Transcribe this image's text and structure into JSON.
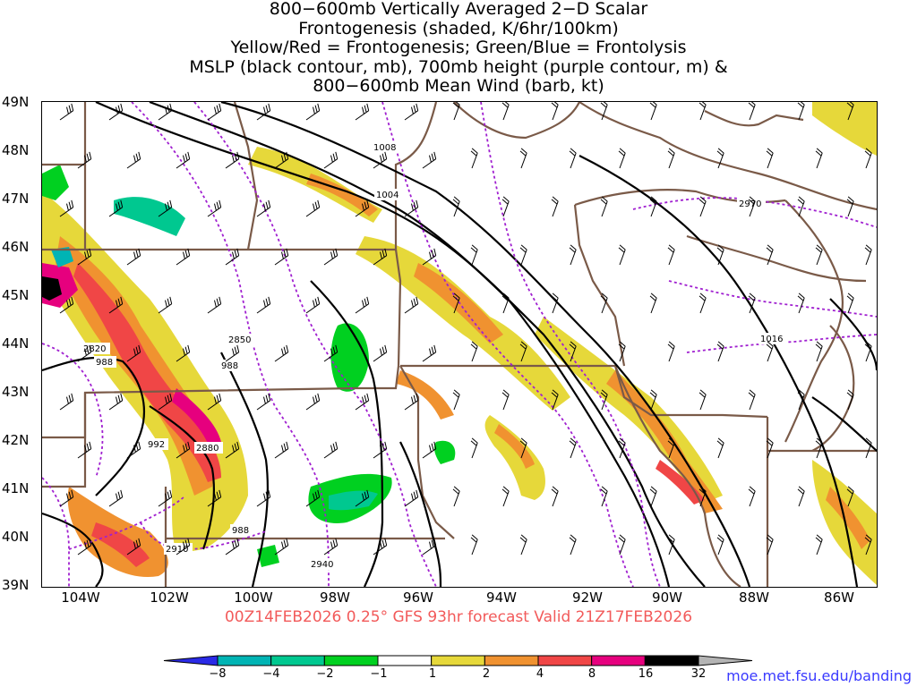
{
  "title_lines": [
    "800−600mb Vertically Averaged 2−D Scalar",
    "Frontogenesis (shaded, K/6hr/100km)",
    "Yellow/Red = Frontogenesis;  Green/Blue = Frontolysis",
    "MSLP (black contour, mb), 700mb height (purple contour, m) &",
    "800−600mb Mean Wind (barb, kt)"
  ],
  "subtitle": "00Z14FEB2026 0.25° GFS 93hr forecast Valid 21Z17FEB2026",
  "credit": "moe.met.fsu.edu/banding",
  "lat_labels": [
    "49N",
    "48N",
    "47N",
    "46N",
    "45N",
    "44N",
    "43N",
    "42N",
    "41N",
    "40N",
    "39N"
  ],
  "lon_labels": [
    "104W",
    "102W",
    "100W",
    "98W",
    "96W",
    "94W",
    "92W",
    "90W",
    "88W",
    "86W"
  ],
  "contour_labels": {
    "mslp": [
      "1008",
      "1004",
      "1016",
      "988",
      "992",
      "988",
      "988"
    ],
    "height": [
      "2820",
      "2850",
      "2880",
      "2910",
      "2940",
      "2970"
    ]
  },
  "colorbar": {
    "labels": [
      "−8",
      "−4",
      "−2",
      "−1",
      "1",
      "2",
      "4",
      "8",
      "16",
      "32"
    ],
    "colors": [
      "#2a2ae6",
      "#00b4b4",
      "#00c890",
      "#00d020",
      "#ffffff",
      "#e6d83a",
      "#f09230",
      "#f04646",
      "#e6007e",
      "#000000",
      "#b4b4b4"
    ]
  },
  "colors": {
    "mslp": "#000000",
    "height": "#a020d0",
    "borders": "#7a5a48",
    "subtitle": "#f25a5a",
    "credit": "#3a3aff"
  }
}
